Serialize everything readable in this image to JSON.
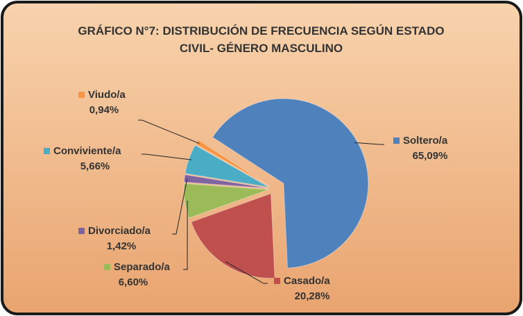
{
  "chart_data": {
    "type": "pie",
    "title": "GRÁFICO N°7: DISTRIBUCIÓN  DE FRECUENCIA SEGÚN ESTADO CIVIL- GÉNERO MASCULINO",
    "categories": [
      "Soltero/a",
      "Casado/a",
      "Separado/a",
      "Divorciado/a",
      "Conviviente/a",
      "Viudo/a"
    ],
    "values": [
      65.09,
      20.28,
      6.6,
      1.42,
      5.66,
      0.94
    ],
    "value_labels": [
      "65,09%",
      "20,28%",
      "6,60%",
      "1,42%",
      "5,66%",
      "0,94%"
    ],
    "colors": [
      "#4f81bd",
      "#c0504d",
      "#9bbb59",
      "#8064a2",
      "#4bacc6",
      "#f79646"
    ]
  }
}
